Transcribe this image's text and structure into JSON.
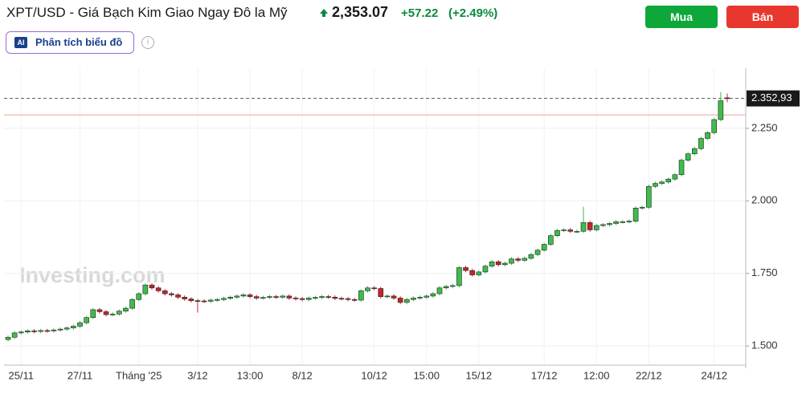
{
  "header": {
    "title": "XPT/USD - Giá Bạch Kim Giao Ngay Đô la Mỹ",
    "price": "2,353.07",
    "change": "+57.22",
    "change_percent": "(+2.49%)",
    "buy": "Mua",
    "sell": "Bán",
    "analysis": "Phân tích biểu đồ"
  },
  "chart_data": {
    "type": "candlestick",
    "watermark": "Investing.com",
    "up_color": "#3ebd4a",
    "down_color": "#c8232c",
    "grid": true,
    "ylim": [
      1434,
      2457
    ],
    "yticks": [
      {
        "value": 1500,
        "label": "1.500"
      },
      {
        "value": 1750,
        "label": "1.750"
      },
      {
        "value": 2000,
        "label": "2.000"
      },
      {
        "value": 2250,
        "label": "2.250"
      }
    ],
    "last_price": {
      "value": 2352.93,
      "label": "2.352,93"
    },
    "reference_line": 2295.85,
    "categories": [
      null,
      null,
      "25/11",
      null,
      null,
      null,
      null,
      null,
      null,
      null,
      null,
      "27/11",
      null,
      null,
      null,
      null,
      null,
      null,
      null,
      null,
      "Tháng '25",
      null,
      null,
      null,
      null,
      null,
      null,
      null,
      null,
      "3/12",
      null,
      null,
      null,
      null,
      null,
      null,
      null,
      "13:00",
      null,
      null,
      null,
      null,
      null,
      null,
      null,
      "8/12",
      null,
      null,
      null,
      null,
      null,
      null,
      null,
      null,
      null,
      null,
      "10/12",
      null,
      null,
      null,
      null,
      null,
      null,
      null,
      "15:00",
      null,
      null,
      null,
      null,
      null,
      null,
      null,
      "15/12",
      null,
      null,
      null,
      null,
      null,
      null,
      null,
      null,
      null,
      "17/12",
      null,
      null,
      null,
      null,
      null,
      null,
      null,
      "12:00",
      null,
      null,
      null,
      null,
      null,
      null,
      null,
      "22/12",
      null,
      null,
      null,
      null,
      null,
      null,
      null,
      null,
      null,
      "24/12",
      null,
      null
    ],
    "open": [
      1522,
      1530,
      1545,
      1548,
      1552,
      1550,
      1553,
      1552,
      1555,
      1558,
      1562,
      1568,
      1580,
      1598,
      1625,
      1618,
      1608,
      1610,
      1620,
      1630,
      1660,
      1680,
      1710,
      1700,
      1690,
      1680,
      1676,
      1668,
      1662,
      1656,
      1655,
      1654,
      1658,
      1660,
      1664,
      1668,
      1672,
      1676,
      1670,
      1665,
      1667,
      1670,
      1668,
      1672,
      1665,
      1663,
      1660,
      1665,
      1667,
      1670,
      1668,
      1664,
      1663,
      1660,
      1658,
      1690,
      1700,
      1698,
      1670,
      1672,
      1665,
      1650,
      1660,
      1665,
      1668,
      1672,
      1680,
      1700,
      1705,
      1708,
      1770,
      1760,
      1745,
      1755,
      1775,
      1790,
      1780,
      1785,
      1800,
      1795,
      1802,
      1815,
      1830,
      1850,
      1880,
      1898,
      1900,
      1895,
      1895,
      1925,
      1900,
      1915,
      1918,
      1922,
      1928,
      1928,
      1930,
      1975,
      1978,
      2050,
      2060,
      2065,
      2075,
      2090,
      2140,
      2162,
      2180,
      2215,
      2235,
      2280,
      2355
    ],
    "high": [
      1536,
      1551,
      1554,
      1558,
      1558,
      1559,
      1559,
      1561,
      1564,
      1568,
      1574,
      1586,
      1604,
      1631,
      1631,
      1624,
      1616,
      1626,
      1636,
      1666,
      1686,
      1716,
      1716,
      1706,
      1696,
      1686,
      1682,
      1674,
      1668,
      1662,
      1661,
      1664,
      1666,
      1670,
      1674,
      1678,
      1682,
      1682,
      1676,
      1673,
      1676,
      1676,
      1678,
      1678,
      1671,
      1669,
      1671,
      1673,
      1676,
      1676,
      1674,
      1670,
      1669,
      1666,
      1696,
      1706,
      1706,
      1704,
      1678,
      1678,
      1671,
      1666,
      1671,
      1674,
      1678,
      1686,
      1706,
      1711,
      1714,
      1776,
      1776,
      1766,
      1761,
      1781,
      1796,
      1796,
      1791,
      1806,
      1806,
      1808,
      1821,
      1836,
      1856,
      1886,
      1904,
      1906,
      1906,
      1901,
      1980,
      1931,
      1921,
      1924,
      1928,
      1934,
      1934,
      1936,
      1981,
      1984,
      2056,
      2066,
      2071,
      2081,
      2096,
      2146,
      2168,
      2186,
      2221,
      2241,
      2286,
      2375,
      2370
    ],
    "low": [
      1516,
      1524,
      1539,
      1542,
      1544,
      1544,
      1546,
      1546,
      1549,
      1552,
      1556,
      1562,
      1574,
      1592,
      1612,
      1602,
      1602,
      1604,
      1614,
      1624,
      1654,
      1674,
      1694,
      1684,
      1674,
      1670,
      1662,
      1656,
      1650,
      1615,
      1648,
      1648,
      1652,
      1654,
      1658,
      1662,
      1666,
      1664,
      1659,
      1659,
      1661,
      1662,
      1662,
      1659,
      1657,
      1654,
      1654,
      1659,
      1661,
      1662,
      1658,
      1657,
      1654,
      1652,
      1652,
      1684,
      1692,
      1664,
      1664,
      1659,
      1644,
      1644,
      1654,
      1659,
      1662,
      1666,
      1674,
      1694,
      1699,
      1702,
      1754,
      1739,
      1739,
      1749,
      1769,
      1774,
      1774,
      1779,
      1789,
      1789,
      1796,
      1809,
      1824,
      1844,
      1874,
      1892,
      1889,
      1889,
      1889,
      1894,
      1894,
      1909,
      1912,
      1916,
      1922,
      1922,
      1924,
      1969,
      1972,
      2044,
      2054,
      2059,
      2069,
      2084,
      2134,
      2156,
      2174,
      2209,
      2229,
      2274,
      2340
    ],
    "close": [
      1530,
      1545,
      1548,
      1552,
      1550,
      1553,
      1552,
      1555,
      1558,
      1562,
      1568,
      1580,
      1598,
      1625,
      1618,
      1608,
      1610,
      1620,
      1630,
      1660,
      1680,
      1710,
      1700,
      1690,
      1680,
      1676,
      1668,
      1662,
      1656,
      1655,
      1654,
      1658,
      1660,
      1664,
      1668,
      1672,
      1676,
      1670,
      1665,
      1667,
      1670,
      1668,
      1672,
      1665,
      1663,
      1660,
      1665,
      1667,
      1670,
      1668,
      1664,
      1663,
      1660,
      1658,
      1690,
      1700,
      1698,
      1670,
      1672,
      1665,
      1650,
      1660,
      1665,
      1668,
      1672,
      1680,
      1700,
      1705,
      1708,
      1770,
      1760,
      1745,
      1755,
      1775,
      1790,
      1780,
      1785,
      1800,
      1795,
      1802,
      1815,
      1830,
      1850,
      1880,
      1898,
      1900,
      1895,
      1895,
      1925,
      1900,
      1915,
      1918,
      1922,
      1928,
      1928,
      1930,
      1975,
      1978,
      2050,
      2060,
      2065,
      2075,
      2090,
      2140,
      2162,
      2180,
      2215,
      2235,
      2280,
      2345,
      2352.93
    ]
  }
}
